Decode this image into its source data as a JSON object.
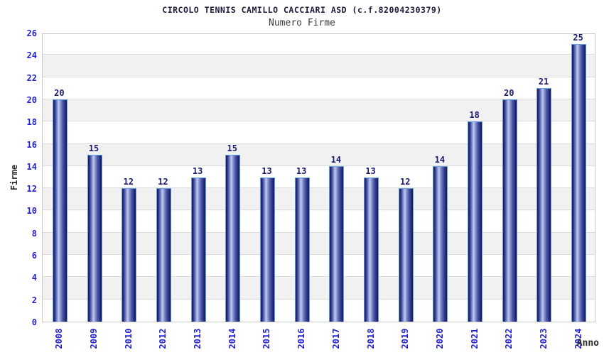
{
  "header": {
    "title": "CIRCOLO TENNIS CAMILLO CACCIARI ASD (c.f.82004230379)",
    "subtitle": "Numero Firme"
  },
  "chart_data": {
    "type": "bar",
    "title": "CIRCOLO TENNIS CAMILLO CACCIARI ASD (c.f.82004230379)",
    "subtitle": "Numero Firme",
    "xlabel": "Anno",
    "ylabel": "Firme",
    "categories": [
      "2008",
      "2009",
      "2010",
      "2012",
      "2013",
      "2014",
      "2015",
      "2016",
      "2017",
      "2018",
      "2019",
      "2020",
      "2021",
      "2022",
      "2023",
      "2024"
    ],
    "values": [
      20,
      15,
      12,
      12,
      13,
      15,
      13,
      13,
      14,
      13,
      12,
      14,
      18,
      20,
      21,
      25
    ],
    "ylim": [
      0,
      26
    ],
    "ytick_step": 2,
    "grid": true,
    "legend": "none",
    "band_fill": "alternating-horizontal"
  },
  "colors": {
    "tick_label": "#2222cc",
    "value_label": "#1a1a70",
    "title": "#1a1a3c",
    "subtitle": "#3c3c3c",
    "axis_title": "#2a2a2a",
    "bar_dark": "#14145f",
    "bar_light": "#c2cbf0",
    "bar_border": "#66a2dc",
    "gridline": "#dcdcdc",
    "band_gray": "#f1f1f1",
    "plot_border": "#c9c9c9"
  }
}
